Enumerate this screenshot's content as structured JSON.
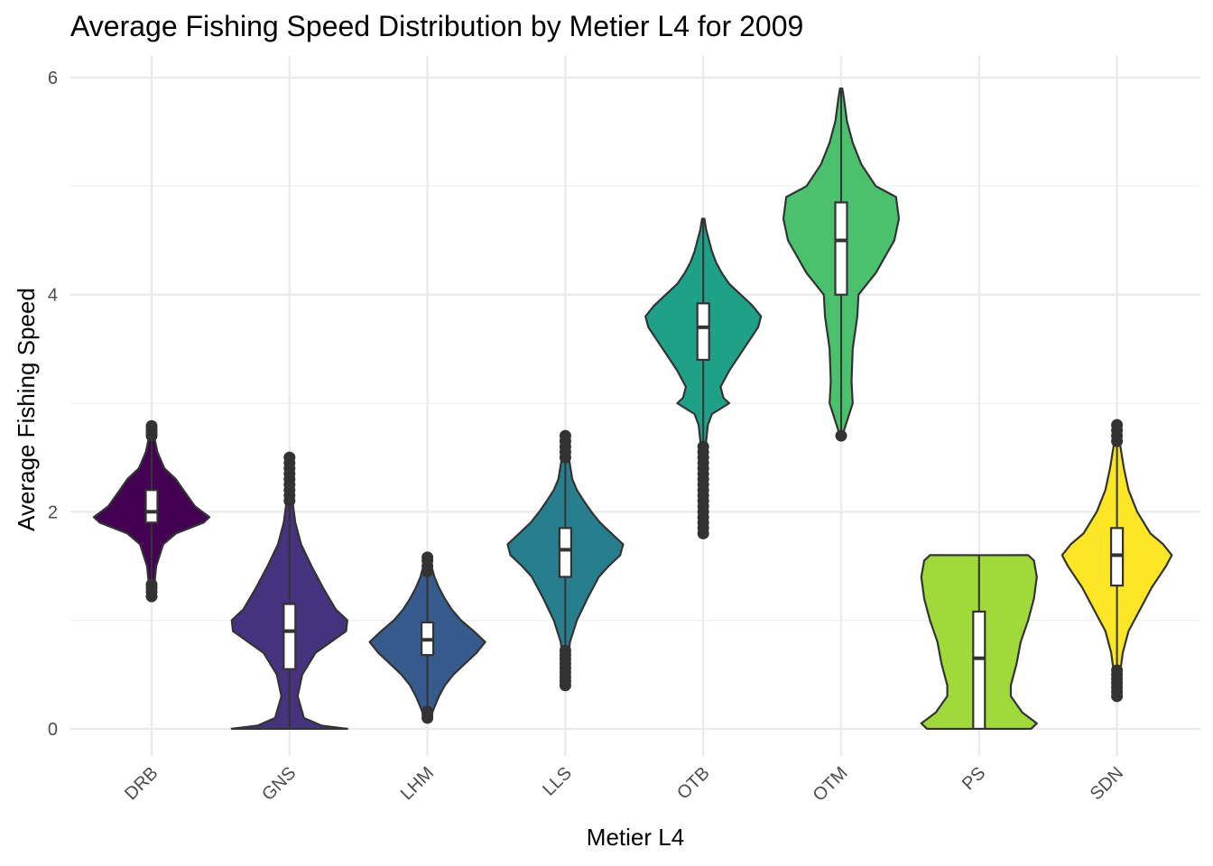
{
  "chart_data": {
    "type": "violin",
    "title": "Average Fishing Speed Distribution by Metier L4 for 2009",
    "xlabel": "Metier L4",
    "ylabel": "Average Fishing Speed",
    "ylim": [
      -0.25,
      6.2
    ],
    "y_ticks": [
      "0",
      "2",
      "4",
      "6"
    ],
    "grid": true,
    "categories": [
      "DRB",
      "GNS",
      "LHM",
      "LLS",
      "OTB",
      "OTM",
      "PS",
      "SDN"
    ],
    "colors": [
      "#440154",
      "#46337e",
      "#365c8d",
      "#277f8e",
      "#1fa187",
      "#4ac16d",
      "#9fda3a",
      "#fde725"
    ],
    "violins": [
      {
        "name": "DRB",
        "min": 1.2,
        "max": 2.8,
        "profile": [
          [
            1.2,
            0.02
          ],
          [
            1.3,
            0.04
          ],
          [
            1.5,
            0.08
          ],
          [
            1.7,
            0.2
          ],
          [
            1.8,
            0.42
          ],
          [
            1.9,
            0.9
          ],
          [
            1.95,
            1.0
          ],
          [
            2.05,
            0.75
          ],
          [
            2.2,
            0.55
          ],
          [
            2.3,
            0.42
          ],
          [
            2.4,
            0.22
          ],
          [
            2.55,
            0.1
          ],
          [
            2.7,
            0.04
          ],
          [
            2.8,
            0.02
          ]
        ],
        "q1": 1.9,
        "median": 2.0,
        "q3": 2.2,
        "outliers_low": [
          1.22,
          1.26,
          1.3,
          1.33
        ],
        "outliers_high": [
          2.7,
          2.73,
          2.76,
          2.79
        ]
      },
      {
        "name": "GNS",
        "min": 0,
        "max": 2.5,
        "profile": [
          [
            0,
            1.0
          ],
          [
            0.03,
            0.55
          ],
          [
            0.1,
            0.25
          ],
          [
            0.3,
            0.14
          ],
          [
            0.5,
            0.22
          ],
          [
            0.7,
            0.45
          ],
          [
            0.9,
            0.98
          ],
          [
            1.0,
            1.0
          ],
          [
            1.1,
            0.8
          ],
          [
            1.3,
            0.58
          ],
          [
            1.5,
            0.38
          ],
          [
            1.7,
            0.2
          ],
          [
            1.9,
            0.1
          ],
          [
            2.1,
            0.05
          ],
          [
            2.3,
            0.03
          ],
          [
            2.5,
            0.02
          ]
        ],
        "q1": 0.55,
        "median": 0.9,
        "q3": 1.15,
        "outliers_high": [
          2.1,
          2.15,
          2.2,
          2.25,
          2.3,
          2.35,
          2.4,
          2.45,
          2.5
        ]
      },
      {
        "name": "LHM",
        "min": 0.1,
        "max": 1.6,
        "profile": [
          [
            0.1,
            0.05
          ],
          [
            0.2,
            0.12
          ],
          [
            0.3,
            0.2
          ],
          [
            0.4,
            0.3
          ],
          [
            0.5,
            0.45
          ],
          [
            0.6,
            0.65
          ],
          [
            0.7,
            0.85
          ],
          [
            0.8,
            1.0
          ],
          [
            0.9,
            0.8
          ],
          [
            1.0,
            0.58
          ],
          [
            1.1,
            0.42
          ],
          [
            1.2,
            0.3
          ],
          [
            1.3,
            0.2
          ],
          [
            1.4,
            0.12
          ],
          [
            1.5,
            0.07
          ],
          [
            1.6,
            0.04
          ]
        ],
        "q1": 0.68,
        "median": 0.82,
        "q3": 0.98,
        "outliers_low": [
          0.1,
          0.13,
          0.16
        ],
        "outliers_high": [
          1.45,
          1.5,
          1.55,
          1.58
        ]
      },
      {
        "name": "LLS",
        "min": 0.4,
        "max": 2.7,
        "profile": [
          [
            0.4,
            0.02
          ],
          [
            0.6,
            0.04
          ],
          [
            0.8,
            0.08
          ],
          [
            1.0,
            0.2
          ],
          [
            1.2,
            0.38
          ],
          [
            1.4,
            0.58
          ],
          [
            1.5,
            0.75
          ],
          [
            1.6,
            0.95
          ],
          [
            1.7,
            1.0
          ],
          [
            1.8,
            0.8
          ],
          [
            1.9,
            0.6
          ],
          [
            2.0,
            0.45
          ],
          [
            2.1,
            0.32
          ],
          [
            2.2,
            0.2
          ],
          [
            2.3,
            0.12
          ],
          [
            2.5,
            0.06
          ],
          [
            2.7,
            0.02
          ]
        ],
        "q1": 1.4,
        "median": 1.65,
        "q3": 1.85,
        "outliers_low": [
          0.4,
          0.44,
          0.48,
          0.52,
          0.56,
          0.6,
          0.64,
          0.68,
          0.72
        ],
        "outliers_high": [
          2.5,
          2.55,
          2.6,
          2.65,
          2.7
        ]
      },
      {
        "name": "OTB",
        "min": 1.8,
        "max": 4.7,
        "profile": [
          [
            1.8,
            0.02
          ],
          [
            2.2,
            0.03
          ],
          [
            2.6,
            0.04
          ],
          [
            2.8,
            0.08
          ],
          [
            2.9,
            0.15
          ],
          [
            3.0,
            0.45
          ],
          [
            3.05,
            0.35
          ],
          [
            3.15,
            0.3
          ],
          [
            3.3,
            0.45
          ],
          [
            3.5,
            0.7
          ],
          [
            3.7,
            0.95
          ],
          [
            3.8,
            1.0
          ],
          [
            3.9,
            0.85
          ],
          [
            4.0,
            0.65
          ],
          [
            4.1,
            0.45
          ],
          [
            4.2,
            0.32
          ],
          [
            4.3,
            0.22
          ],
          [
            4.4,
            0.15
          ],
          [
            4.5,
            0.1
          ],
          [
            4.6,
            0.05
          ],
          [
            4.7,
            0.02
          ]
        ],
        "q1": 3.4,
        "median": 3.7,
        "q3": 3.92,
        "outliers_low": [
          1.8,
          1.85,
          1.9,
          1.95,
          2.0,
          2.05,
          2.1,
          2.15,
          2.2,
          2.25,
          2.3,
          2.35,
          2.4,
          2.45,
          2.5,
          2.55,
          2.6
        ]
      },
      {
        "name": "OTM",
        "min": 2.7,
        "max": 5.9,
        "profile": [
          [
            2.7,
            0.02
          ],
          [
            2.8,
            0.08
          ],
          [
            3.0,
            0.2
          ],
          [
            3.2,
            0.18
          ],
          [
            3.5,
            0.2
          ],
          [
            3.8,
            0.28
          ],
          [
            4.0,
            0.3
          ],
          [
            4.2,
            0.6
          ],
          [
            4.5,
            0.92
          ],
          [
            4.7,
            1.0
          ],
          [
            4.9,
            0.95
          ],
          [
            5.0,
            0.6
          ],
          [
            5.2,
            0.35
          ],
          [
            5.4,
            0.2
          ],
          [
            5.6,
            0.1
          ],
          [
            5.8,
            0.05
          ],
          [
            5.9,
            0.02
          ]
        ],
        "q1": 4.0,
        "median": 4.5,
        "q3": 4.85,
        "outliers_low": [
          2.7
        ]
      },
      {
        "name": "PS",
        "min": 0,
        "max": 1.6,
        "profile": [
          [
            0,
            0.9
          ],
          [
            0.05,
            1.0
          ],
          [
            0.15,
            0.75
          ],
          [
            0.3,
            0.55
          ],
          [
            0.4,
            0.55
          ],
          [
            0.6,
            0.65
          ],
          [
            0.8,
            0.72
          ],
          [
            1.0,
            0.85
          ],
          [
            1.2,
            0.95
          ],
          [
            1.4,
            1.0
          ],
          [
            1.55,
            0.95
          ],
          [
            1.6,
            0.85
          ]
        ],
        "q1": 0,
        "median": 0.65,
        "q3": 1.08
      },
      {
        "name": "SDN",
        "min": 0.3,
        "max": 2.8,
        "profile": [
          [
            0.3,
            0.02
          ],
          [
            0.5,
            0.05
          ],
          [
            0.7,
            0.1
          ],
          [
            0.9,
            0.2
          ],
          [
            1.1,
            0.4
          ],
          [
            1.3,
            0.6
          ],
          [
            1.5,
            0.85
          ],
          [
            1.6,
            0.95
          ],
          [
            1.7,
            0.8
          ],
          [
            1.8,
            0.58
          ],
          [
            2.0,
            0.35
          ],
          [
            2.2,
            0.2
          ],
          [
            2.4,
            0.12
          ],
          [
            2.6,
            0.06
          ],
          [
            2.8,
            0.02
          ]
        ],
        "q1": 1.32,
        "median": 1.6,
        "q3": 1.85,
        "outliers_low": [
          0.3,
          0.34,
          0.38,
          0.42,
          0.46,
          0.5,
          0.54
        ],
        "outliers_high": [
          2.65,
          2.7,
          2.75,
          2.8
        ]
      }
    ]
  }
}
